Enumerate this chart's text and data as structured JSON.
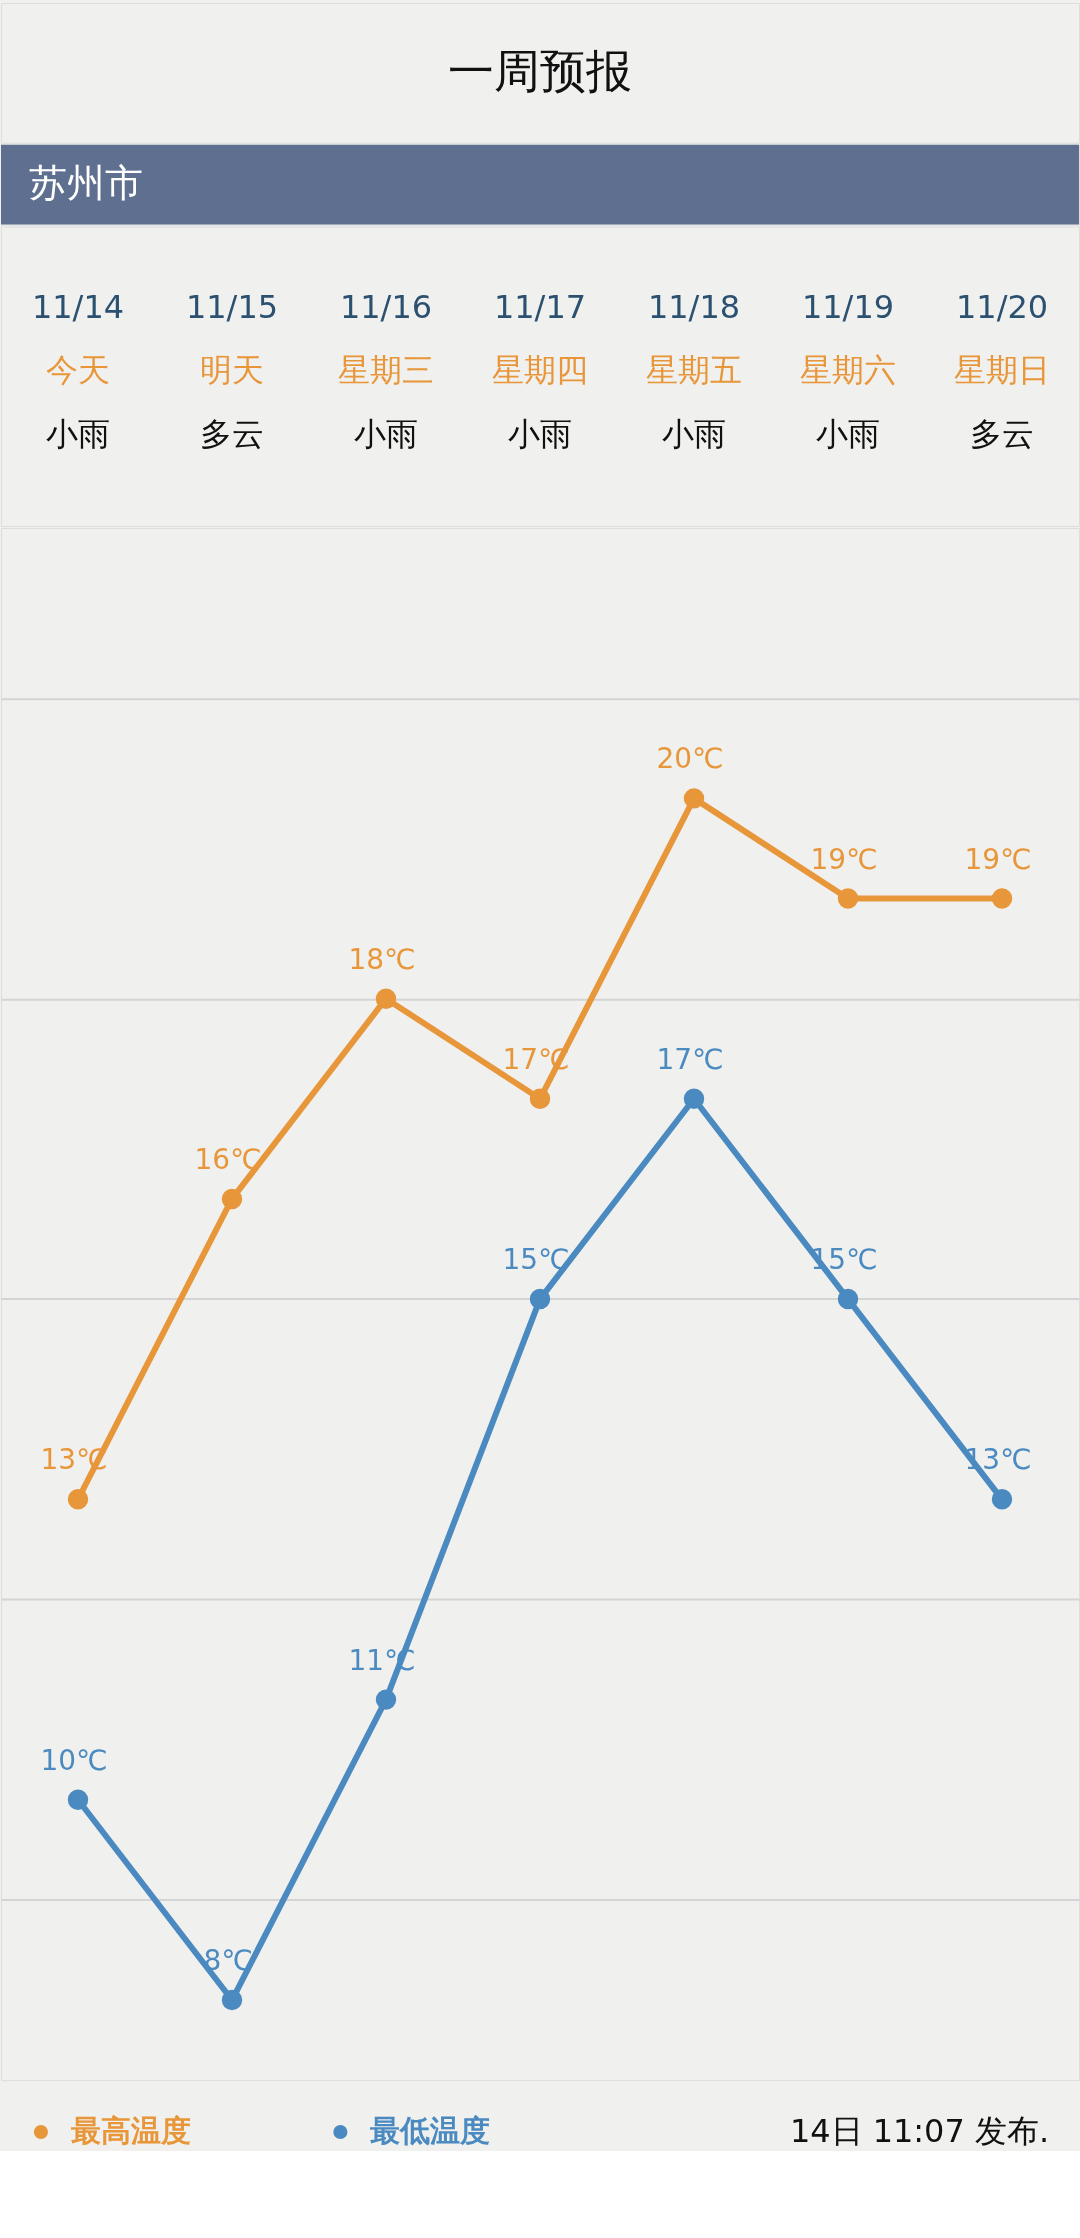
{
  "chart_data": {
    "type": "line",
    "title": "一周预报",
    "subtitle": "苏州市",
    "categories": [
      "11/14",
      "11/15",
      "11/16",
      "11/17",
      "11/18",
      "11/19",
      "11/20"
    ],
    "series": [
      {
        "name": "最高温度",
        "color": "#e8963a",
        "values": [
          13,
          16,
          18,
          17,
          20,
          19,
          19
        ],
        "value_labels": [
          "13℃",
          "16℃",
          "18℃",
          "17℃",
          "20℃",
          "19℃",
          "19℃"
        ]
      },
      {
        "name": "最低温度",
        "color": "#4a8ac0",
        "values": [
          10,
          8,
          11,
          15,
          17,
          15,
          13
        ],
        "value_labels": [
          "10℃",
          "8℃",
          "11℃",
          "15℃",
          "17℃",
          "15℃",
          "13℃"
        ]
      }
    ],
    "ylim": [
      7.2,
      22.7
    ],
    "yticks": [
      {
        "value": 9,
        "label": null
      },
      {
        "value": 12,
        "label": null
      },
      {
        "value": 15,
        "label": null
      },
      {
        "value": 18,
        "label": null
      },
      {
        "value": 21,
        "label": null
      }
    ],
    "grid": "y",
    "tick_labels": "x",
    "marker": "circle",
    "line_style": "solid",
    "legend": "bottom left",
    "annotations": [
      "今天",
      "明天",
      "星期三",
      "星期四",
      "星期五",
      "星期六",
      "星期日",
      "小雨",
      "多云",
      "小雨",
      "小雨",
      "小雨",
      "小雨",
      "多云",
      "14日 11:07 发布."
    ]
  }
}
